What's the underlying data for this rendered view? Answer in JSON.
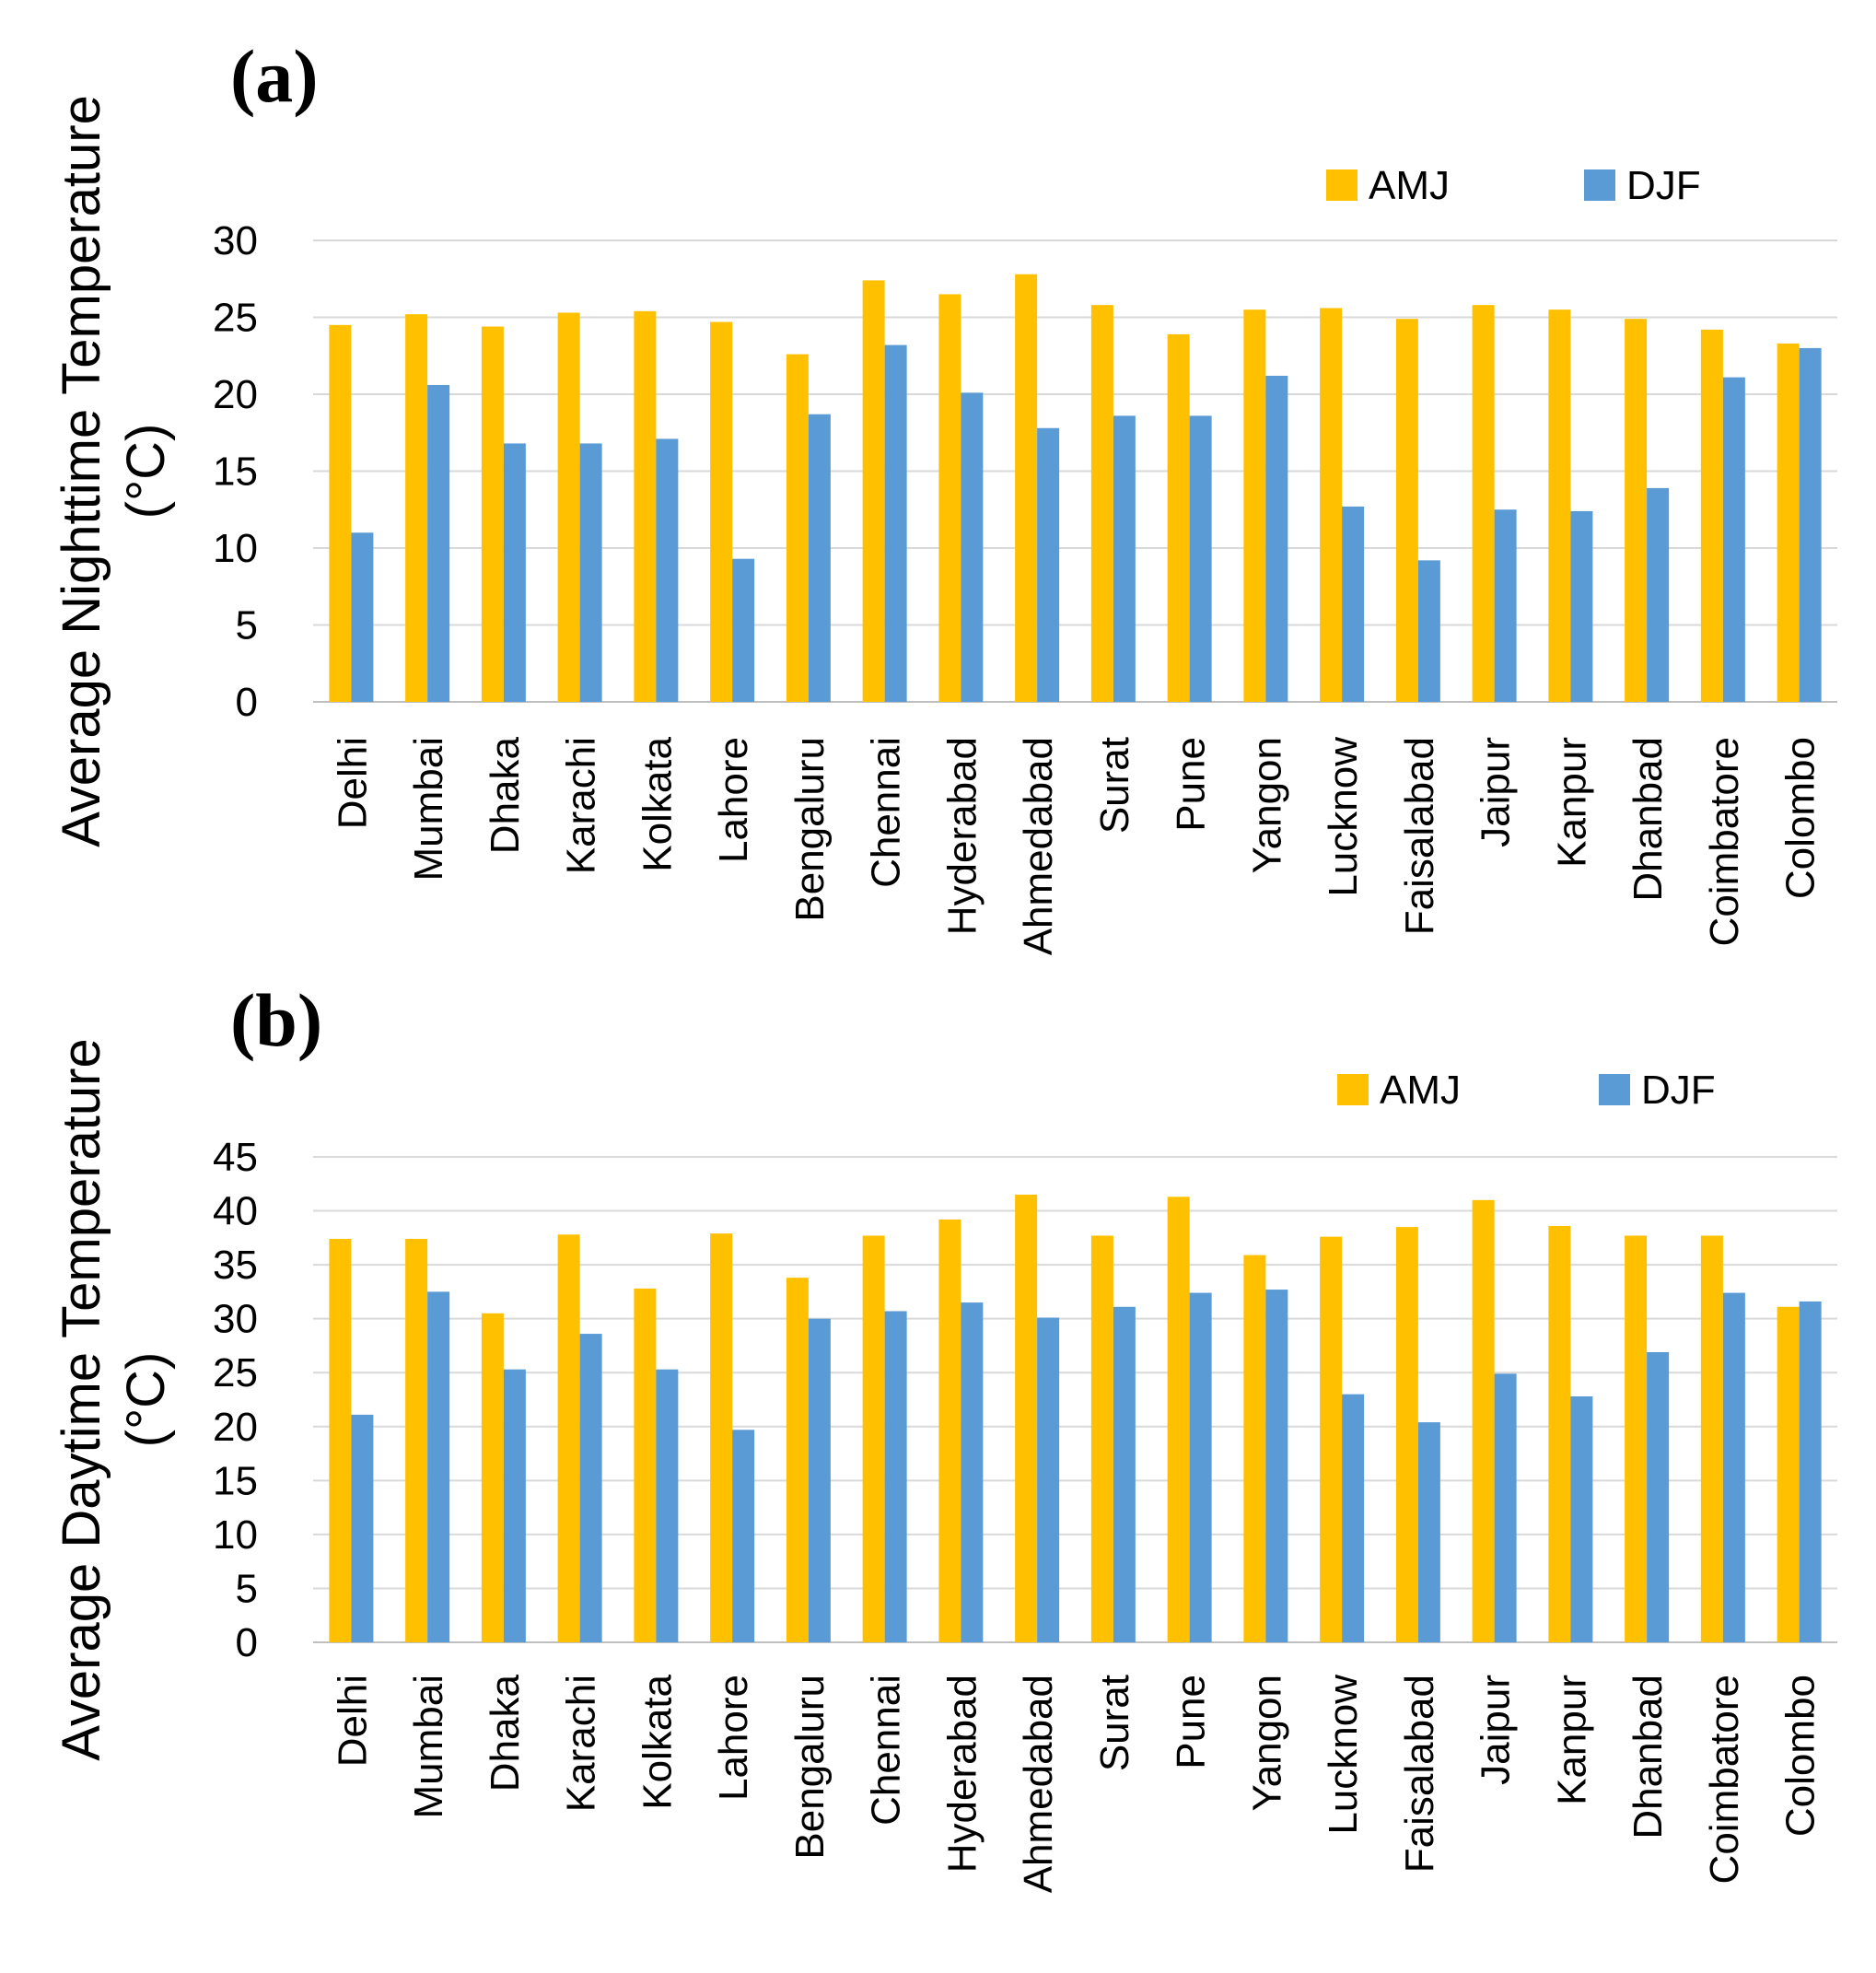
{
  "chart_data": [
    {
      "type": "bar",
      "panel_label": "(a)",
      "ylabel_line1": "Average Nighttime Temperature",
      "ylabel_line2": "(°C)",
      "ylim": [
        0,
        30
      ],
      "yticks": [
        0,
        5,
        10,
        15,
        20,
        25,
        30
      ],
      "grid": true,
      "legend_position": "top-right",
      "categories": [
        "Delhi",
        "Mumbai",
        "Dhaka",
        "Karachi",
        "Kolkata",
        "Lahore",
        "Bengaluru",
        "Chennai",
        "Hyderabad",
        "Ahmedabad",
        "Surat",
        "Pune",
        "Yangon",
        "Lucknow",
        "Faisalabad",
        "Jaipur",
        "Kanpur",
        "Dhanbad",
        "Coimbatore",
        "Colombo"
      ],
      "series": [
        {
          "name": "AMJ",
          "color": "#FFC000",
          "values": [
            24.5,
            25.2,
            24.4,
            25.3,
            25.4,
            24.7,
            22.6,
            27.4,
            26.5,
            27.8,
            25.8,
            23.9,
            25.5,
            25.6,
            24.9,
            25.8,
            25.5,
            24.9,
            24.2,
            23.3
          ]
        },
        {
          "name": "DJF",
          "color": "#5B9BD5",
          "values": [
            11.0,
            20.6,
            16.8,
            16.8,
            17.1,
            9.3,
            18.7,
            23.2,
            20.1,
            17.8,
            18.6,
            18.6,
            21.2,
            12.7,
            9.2,
            12.5,
            12.4,
            13.9,
            21.1,
            23.0
          ]
        }
      ]
    },
    {
      "type": "bar",
      "panel_label": "(b)",
      "ylabel_line1": "Average Daytime Temperature",
      "ylabel_line2": "(°C)",
      "ylim": [
        0,
        45
      ],
      "yticks": [
        0,
        5,
        10,
        15,
        20,
        25,
        30,
        35,
        40,
        45
      ],
      "grid": true,
      "legend_position": "top-right",
      "categories": [
        "Delhi",
        "Mumbai",
        "Dhaka",
        "Karachi",
        "Kolkata",
        "Lahore",
        "Bengaluru",
        "Chennai",
        "Hyderabad",
        "Ahmedabad",
        "Surat",
        "Pune",
        "Yangon",
        "Lucknow",
        "Faisalabad",
        "Jaipur",
        "Kanpur",
        "Dhanbad",
        "Coimbatore",
        "Colombo"
      ],
      "series": [
        {
          "name": "AMJ",
          "color": "#FFC000",
          "values": [
            37.4,
            37.4,
            30.5,
            37.8,
            32.8,
            37.9,
            33.8,
            37.7,
            39.2,
            41.5,
            37.7,
            41.3,
            35.9,
            37.6,
            38.5,
            41.0,
            38.6,
            37.7,
            37.7,
            31.1
          ]
        },
        {
          "name": "DJF",
          "color": "#5B9BD5",
          "values": [
            21.1,
            32.5,
            25.3,
            28.6,
            25.3,
            19.7,
            30.0,
            30.7,
            31.5,
            30.1,
            31.1,
            32.4,
            32.7,
            23.0,
            20.4,
            24.9,
            22.8,
            26.9,
            32.4,
            31.6
          ]
        }
      ]
    }
  ]
}
